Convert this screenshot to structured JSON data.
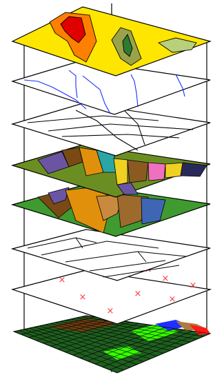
{
  "diagram": {
    "layers": [
      {
        "name": "elevation-contours",
        "fill": "#ffe600"
      },
      {
        "name": "hydrography",
        "fill": "#ffffff",
        "stroke_accent": "#1a2cff"
      },
      {
        "name": "roads",
        "fill": "#ffffff"
      },
      {
        "name": "soils",
        "fill": "#6b8e23"
      },
      {
        "name": "geology",
        "fill": "#3f9b2f"
      },
      {
        "name": "parcels",
        "fill": "#ffffff"
      },
      {
        "name": "sample-points",
        "fill": "#ffffff",
        "marker": "x",
        "marker_color": "#ff3b3b",
        "marker_count": 9
      },
      {
        "name": "raster-grid",
        "fill": "#1f5f1f"
      }
    ],
    "palette": {
      "elev_red": "#e00000",
      "elev_orange": "#ff8000",
      "elev_olive": "#9aa34a",
      "elev_light": "#b9d07a",
      "soil_purple": "#6b55a3",
      "soil_brown": "#7a4a14",
      "soil_teal": "#2aa6a6",
      "soil_pink": "#f070c0",
      "geo_orange": "#e0900a",
      "geo_blue": "#3f66b5",
      "geo_brown": "#9d6a2d",
      "grid_bright": "#36ff00",
      "grid_blue": "#1f2fff",
      "grid_red": "#ff1a1a"
    }
  }
}
